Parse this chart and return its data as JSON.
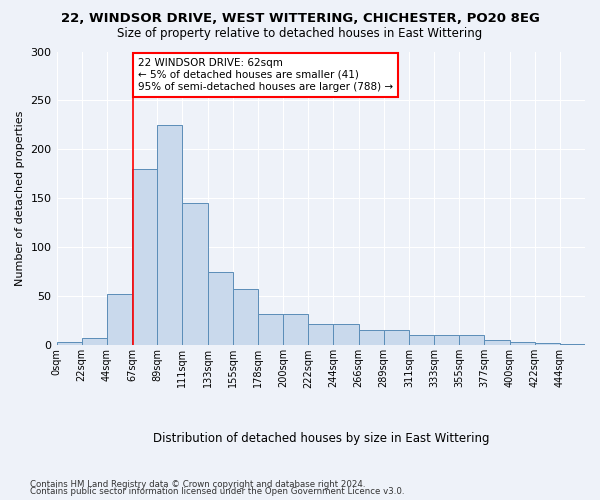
{
  "title1": "22, WINDSOR DRIVE, WEST WITTERING, CHICHESTER, PO20 8EG",
  "title2": "Size of property relative to detached houses in East Wittering",
  "xlabel": "Distribution of detached houses by size in East Wittering",
  "ylabel": "Number of detached properties",
  "bar_color": "#c9d9ec",
  "bar_edge_color": "#5b8db8",
  "bin_labels": [
    "0sqm",
    "22sqm",
    "44sqm",
    "67sqm",
    "89sqm",
    "111sqm",
    "133sqm",
    "155sqm",
    "178sqm",
    "200sqm",
    "222sqm",
    "244sqm",
    "266sqm",
    "289sqm",
    "311sqm",
    "333sqm",
    "355sqm",
    "377sqm",
    "400sqm",
    "422sqm",
    "444sqm"
  ],
  "bar_heights": [
    3,
    7,
    52,
    180,
    225,
    145,
    75,
    57,
    32,
    32,
    22,
    22,
    16,
    16,
    10,
    10,
    10,
    5,
    3,
    2,
    1
  ],
  "ylim": [
    0,
    300
  ],
  "yticks": [
    0,
    50,
    100,
    150,
    200,
    250,
    300
  ],
  "vline_x": 67,
  "annotation_text": "22 WINDSOR DRIVE: 62sqm\n← 5% of detached houses are smaller (41)\n95% of semi-detached houses are larger (788) →",
  "annotation_box_color": "white",
  "annotation_box_edge_color": "red",
  "vline_color": "red",
  "footer1": "Contains HM Land Registry data © Crown copyright and database right 2024.",
  "footer2": "Contains public sector information licensed under the Open Government Licence v3.0.",
  "bin_width": 22,
  "background_color": "#eef2f9",
  "grid_color": "#ffffff"
}
